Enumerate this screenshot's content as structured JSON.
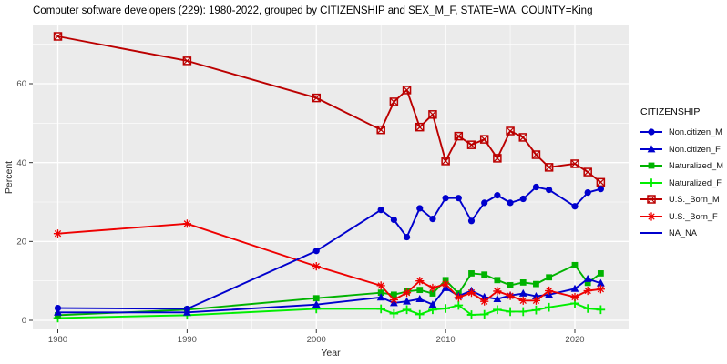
{
  "page": {
    "background": "#FFFFFF"
  },
  "chart_data": {
    "type": "line",
    "title": "Computer software developers (229): 1980-2022, grouped by CITIZENSHIP and SEX_M_F, STATE=WA, COUNTY=King",
    "xlabel": "Year",
    "ylabel": "Percent",
    "legend_title": "CITIZENSHIP",
    "legend_position": "right",
    "panel_bg": "#EBEBEB",
    "grid": true,
    "x_ticks": [
      1980,
      1990,
      2000,
      2010,
      2020
    ],
    "y_ticks": [
      0,
      20,
      40,
      60
    ],
    "xlim": [
      1978,
      2024
    ],
    "ylim": [
      0,
      75
    ],
    "x": [
      1980,
      1990,
      2000,
      2005,
      2006,
      2007,
      2008,
      2009,
      2010,
      2011,
      2012,
      2013,
      2014,
      2015,
      2016,
      2017,
      2018,
      2020,
      2021,
      2022
    ],
    "series": [
      {
        "name": "Non.citizen_M",
        "color": "#0000CD",
        "marker": "circle",
        "values": [
          3.1,
          2.9,
          17.6,
          28.0,
          25.5,
          21.1,
          28.4,
          25.7,
          31.0,
          31.0,
          25.2,
          29.8,
          31.7,
          29.8,
          30.8,
          33.8,
          33.1,
          28.9,
          32.4,
          33.3
        ]
      },
      {
        "name": "Non.citizen_F",
        "color": "#0000CD",
        "marker": "triangle",
        "values": [
          2.0,
          2.0,
          4.0,
          5.8,
          4.4,
          4.8,
          5.4,
          4.0,
          8.2,
          6.2,
          7.5,
          5.9,
          5.4,
          6.3,
          6.8,
          6.1,
          6.5,
          8.0,
          10.5,
          9.4
        ]
      },
      {
        "name": "Naturalized_M",
        "color": "#00B300",
        "marker": "square",
        "values": [
          1.3,
          2.7,
          5.6,
          7.0,
          6.5,
          7.3,
          7.7,
          6.8,
          10.2,
          6.8,
          11.9,
          11.6,
          10.2,
          8.9,
          9.6,
          9.2,
          10.9,
          14.0,
          9.5,
          11.9
        ]
      },
      {
        "name": "Naturalized_F",
        "color": "#00EE00",
        "marker": "plus",
        "values": [
          0.6,
          1.3,
          2.9,
          2.9,
          1.7,
          2.7,
          1.5,
          2.7,
          3.0,
          3.8,
          1.4,
          1.5,
          2.7,
          2.2,
          2.2,
          2.6,
          3.3,
          4.3,
          3.0,
          2.7
        ]
      },
      {
        "name": "U.S._Born_M",
        "color": "#BB0000",
        "marker": "square-cross",
        "values": [
          72.0,
          65.8,
          56.4,
          48.3,
          55.4,
          58.4,
          49.0,
          52.2,
          40.4,
          46.7,
          44.5,
          45.9,
          41.1,
          48.0,
          46.4,
          42.0,
          38.8,
          39.7,
          37.6,
          35.0
        ]
      },
      {
        "name": "U.S._Born_F",
        "color": "#EE0000",
        "marker": "asterisk",
        "values": [
          22.0,
          24.5,
          13.7,
          8.8,
          5.2,
          7.0,
          10.0,
          8.2,
          9.2,
          5.8,
          7.0,
          4.8,
          7.4,
          6.2,
          5.0,
          5.0,
          7.5,
          5.9,
          7.5,
          7.9
        ]
      },
      {
        "name": "NA_NA",
        "color": "#0000CD",
        "marker": "line",
        "values": []
      }
    ]
  }
}
